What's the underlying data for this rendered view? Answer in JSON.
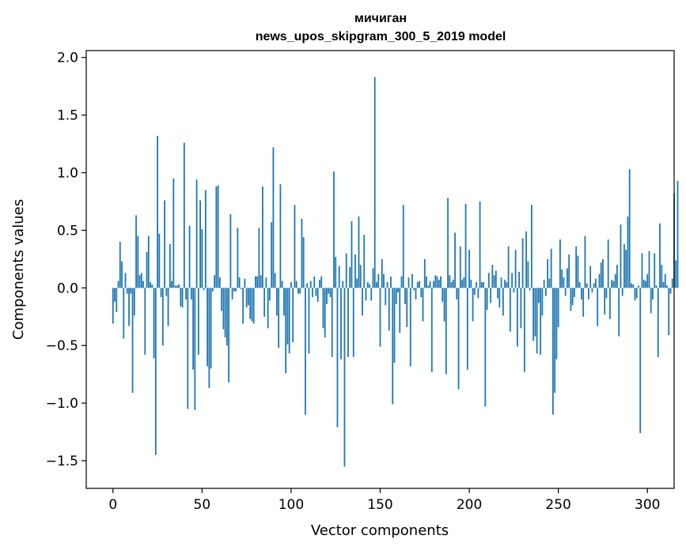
{
  "chart_data": {
    "type": "bar",
    "title": "мичиган",
    "subtitle": "news_upos_skipgram_300_5_2019 model",
    "xlabel": "Vector components",
    "ylabel": "Components values",
    "xlim": [
      -15,
      315
    ],
    "ylim": [
      -1.74,
      2.06
    ],
    "x_ticks": [
      0,
      50,
      100,
      150,
      200,
      250,
      300
    ],
    "x_tick_labels": [
      "0",
      "50",
      "100",
      "150",
      "200",
      "250",
      "300"
    ],
    "y_ticks": [
      -1.5,
      -1.0,
      -0.5,
      0.0,
      0.5,
      1.0,
      1.5,
      2.0
    ],
    "y_tick_labels": [
      "−1.5",
      "−1.0",
      "−0.5",
      "0.0",
      "0.5",
      "1.0",
      "1.5",
      "2.0"
    ],
    "grid": false,
    "bar_color": "#1f77b4",
    "series": [
      {
        "values": [
          -0.31,
          -0.12,
          -0.21,
          0.06,
          0.4,
          0.23,
          -0.44,
          0.13,
          -0.05,
          -0.33,
          -0.05,
          -0.91,
          -0.24,
          0.63,
          0.45,
          0.11,
          0.13,
          0.06,
          -0.58,
          0.31,
          0.45,
          0.05,
          0.03,
          -0.61,
          -1.45,
          1.32,
          0.47,
          -0.08,
          -0.5,
          0.76,
          -0.07,
          -0.33,
          0.38,
          0.06,
          0.95,
          0.02,
          0.02,
          0.03,
          -0.16,
          -0.17,
          1.26,
          -0.1,
          -1.05,
          0.54,
          -0.1,
          -0.71,
          -1.06,
          0.94,
          -0.58,
          0.76,
          0.51,
          -0.02,
          0.85,
          -0.68,
          -0.87,
          -0.7,
          -0.03,
          0.11,
          0.88,
          0.89,
          0.09,
          -0.2,
          -0.36,
          -0.43,
          -0.5,
          -0.82,
          0.64,
          -0.1,
          -0.03,
          -0.03,
          0.52,
          0.09,
          -0.01,
          -0.31,
          0.08,
          -0.17,
          -0.15,
          -0.27,
          -0.29,
          -0.31,
          0.1,
          0.1,
          0.52,
          0.11,
          0.88,
          -0.25,
          0.09,
          -0.35,
          -0.11,
          0.57,
          1.22,
          0.13,
          -0.24,
          -0.52,
          0.9,
          0.06,
          -0.24,
          -0.74,
          -0.49,
          -0.57,
          0.05,
          -0.47,
          0.72,
          0.06,
          -0.05,
          -0.05,
          0.6,
          0.44,
          -1.1,
          0.04,
          -0.57,
          0.06,
          -0.08,
          0.1,
          -0.07,
          -0.12,
          0.07,
          0.1,
          -0.35,
          -0.43,
          -0.14,
          -0.05,
          -0.08,
          -0.6,
          1.01,
          0.27,
          -1.21,
          0.19,
          -0.62,
          0.06,
          -1.55,
          0.3,
          -0.6,
          0.18,
          0.58,
          -0.6,
          0.29,
          0.08,
          0.62,
          0.2,
          -0.24,
          0.46,
          -0.11,
          0.05,
          0.03,
          -0.11,
          0.17,
          1.83,
          0.05,
          0.12,
          -0.51,
          0.25,
          0.12,
          -0.15,
          0.05,
          -0.37,
          0.1,
          -1.01,
          -0.65,
          -0.14,
          -0.04,
          -0.39,
          0.1,
          0.72,
          -0.14,
          -0.34,
          0.09,
          -0.68,
          0.12,
          -0.02,
          -0.1,
          0.05,
          0.06,
          -0.08,
          -0.29,
          0.25,
          0.1,
          0.02,
          0.06,
          -0.73,
          0.06,
          0.11,
          0.1,
          0.07,
          0.1,
          -0.12,
          -0.29,
          -0.75,
          0.78,
          0.11,
          0.05,
          0.07,
          0.48,
          -0.1,
          -0.88,
          0.36,
          0.07,
          0.09,
          0.73,
          -0.71,
          0.33,
          0.07,
          -0.29,
          -0.06,
          0.05,
          -0.09,
          0.75,
          0.05,
          0.05,
          -1.03,
          -0.19,
          0.13,
          -0.13,
          0.2,
          0.11,
          0.15,
          -0.09,
          -0.17,
          0.09,
          -0.24,
          0.07,
          0.05,
          0.36,
          -0.38,
          0.13,
          -0.04,
          0.33,
          -0.51,
          0.14,
          -0.35,
          0.43,
          -0.73,
          0.49,
          0.23,
          -0.02,
          0.72,
          -0.46,
          -0.42,
          -0.57,
          -0.13,
          -0.58,
          -0.24,
          0.07,
          -0.07,
          0.25,
          0.08,
          0.34,
          -1.1,
          -0.91,
          -0.62,
          -0.34,
          0.42,
          0.16,
          0.09,
          -0.07,
          0.17,
          0.29,
          -0.2,
          -0.15,
          -0.08,
          0.36,
          0.28,
          0.05,
          -0.1,
          -0.25,
          0.45,
          0.04,
          -0.1,
          0.19,
          -0.04,
          0.04,
          0.08,
          -0.33,
          0.12,
          0.22,
          0.25,
          -0.23,
          -0.09,
          0.42,
          -0.27,
          0.07,
          0.06,
          0.12,
          0.2,
          -0.42,
          0.55,
          -0.07,
          0.38,
          0.33,
          0.62,
          1.03,
          0.04,
          0.03,
          -0.11,
          -0.09,
          0.02,
          -1.26,
          0.3,
          0.07,
          0.06,
          0.12,
          0.32,
          -0.22,
          -0.1,
          0.3,
          0.02,
          -0.6,
          0.56,
          0.2,
          0.05,
          0.12,
          0.02,
          -0.41,
          -0.05,
          0.08,
          0.82,
          0.24,
          0.93
        ]
      }
    ]
  }
}
